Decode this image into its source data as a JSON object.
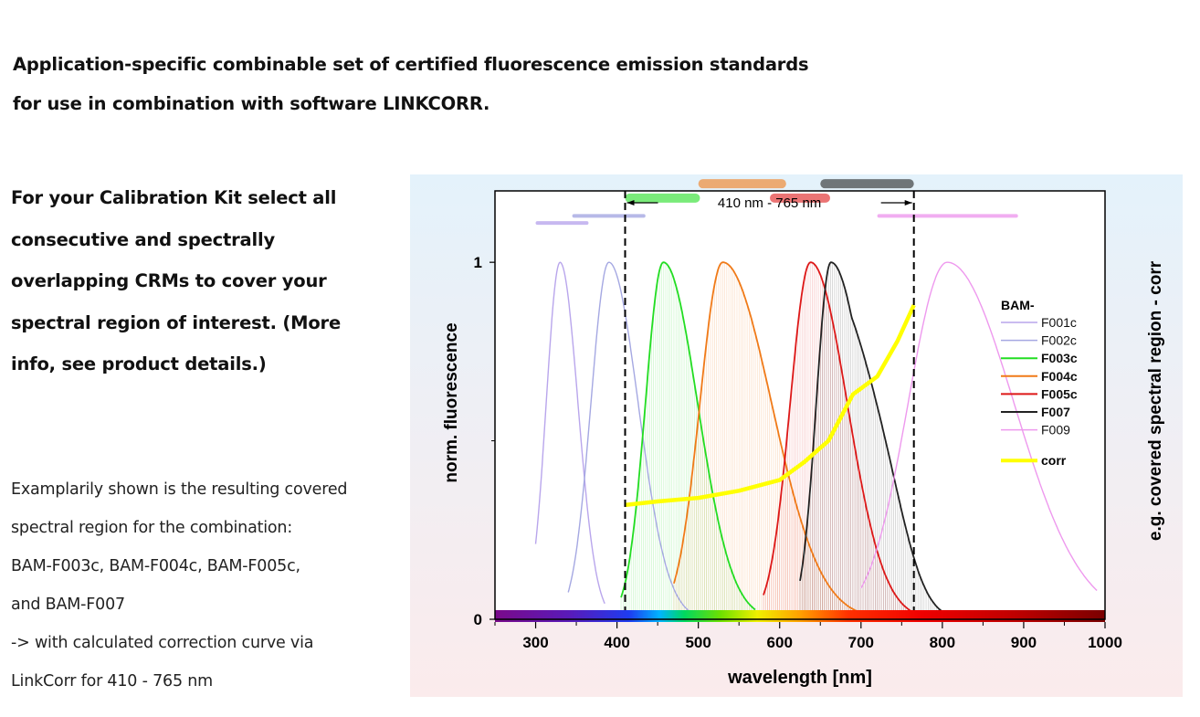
{
  "heading": {
    "line1": "Application-specific combinable set of certified fluorescence emission standards",
    "line2": "for use in combination with software LINKCORR."
  },
  "kit_text": [
    "For your Calibration Kit  select all",
    "consecutive and spectrally",
    "overlapping CRMs to cover your",
    "spectral region of interest. (More",
    "info, see product details.)"
  ],
  "note_text": [
    "Examplarily shown is the resulting covered",
    "spectral region for the combination:",
    "BAM-F003c, BAM-F004c, BAM-F005c,",
    "and BAM-F007",
    "-> with calculated correction curve via",
    "LinkCorr for 410 - 765 nm"
  ],
  "chart_data": {
    "type": "line",
    "xlabel": "wavelength [nm]",
    "ylabel": "norm. fluorescence",
    "ylabel_right": "e.g. covered spectral region - corr",
    "xlim": [
      250,
      1000
    ],
    "ylim": [
      0,
      1.2
    ],
    "xticks": [
      300,
      400,
      500,
      600,
      700,
      800,
      900,
      1000
    ],
    "yticks": [
      {
        "value": 0,
        "label": "0"
      },
      {
        "value": 1,
        "label": "1"
      }
    ],
    "legend_title": "BAM-",
    "legend_position": "right",
    "range_annotation": {
      "label": "410 nm - 765 nm",
      "x_start": 410,
      "x_end": 765
    },
    "series": [
      {
        "name": "F001c",
        "color": "#b9a6ec",
        "peak": 330,
        "width_left": 17,
        "width_right": 22,
        "x_start": 300,
        "x_end": 385,
        "bold": false,
        "filled": false,
        "range": [
          300,
          365
        ],
        "bar_level": 1.11
      },
      {
        "name": "F002c",
        "color": "#a5a8e2",
        "peak": 390,
        "width_left": 22,
        "width_right": 36,
        "x_start": 340,
        "x_end": 520,
        "bold": false,
        "filled": false,
        "range": [
          345,
          435
        ],
        "bar_level": 1.13
      },
      {
        "name": "F003c",
        "color": "#22dd22",
        "peak": 457,
        "width_left": 22,
        "width_right": 42,
        "x_start": 405,
        "x_end": 570,
        "bold": true,
        "filled": true,
        "range": [
          410,
          502
        ],
        "bar_level": 1.18
      },
      {
        "name": "F004c",
        "color": "#f07a18",
        "peak": 530,
        "width_left": 28,
        "width_right": 60,
        "x_start": 470,
        "x_end": 700,
        "bold": true,
        "filled": true,
        "range": [
          500,
          608
        ],
        "bar_level": 1.22
      },
      {
        "name": "F005c",
        "color": "#dd1818",
        "peak": 638,
        "width_left": 25,
        "width_right": 45,
        "x_start": 580,
        "x_end": 765,
        "bold": true,
        "filled": true,
        "range": [
          588,
          662
        ],
        "bar_level": 1.18
      },
      {
        "name": "F007",
        "color": "#222222",
        "peak": 663,
        "width_left": 18,
        "width_right": 44,
        "shoulder": 730,
        "x_start": 625,
        "x_end": 808,
        "bold": true,
        "filled": true,
        "range": [
          650,
          765
        ],
        "bar_level": 1.22
      },
      {
        "name": "F009",
        "color": "#ee99ee",
        "peak": 806,
        "width_left": 48,
        "width_right": 82,
        "x_start": 700,
        "x_end": 990,
        "bold": false,
        "filled": false,
        "range": [
          720,
          893
        ],
        "bar_level": 1.13
      }
    ],
    "corr": {
      "name": "corr",
      "color": "#ffff00",
      "x": [
        410,
        450,
        500,
        550,
        600,
        630,
        660,
        690,
        720,
        745,
        765
      ],
      "y": [
        0.32,
        0.33,
        0.34,
        0.36,
        0.39,
        0.44,
        0.5,
        0.63,
        0.68,
        0.78,
        0.88
      ]
    },
    "colors": {
      "panel_bg_top": "#e4f2fb",
      "panel_bg_bottom": "#fbebec"
    }
  }
}
